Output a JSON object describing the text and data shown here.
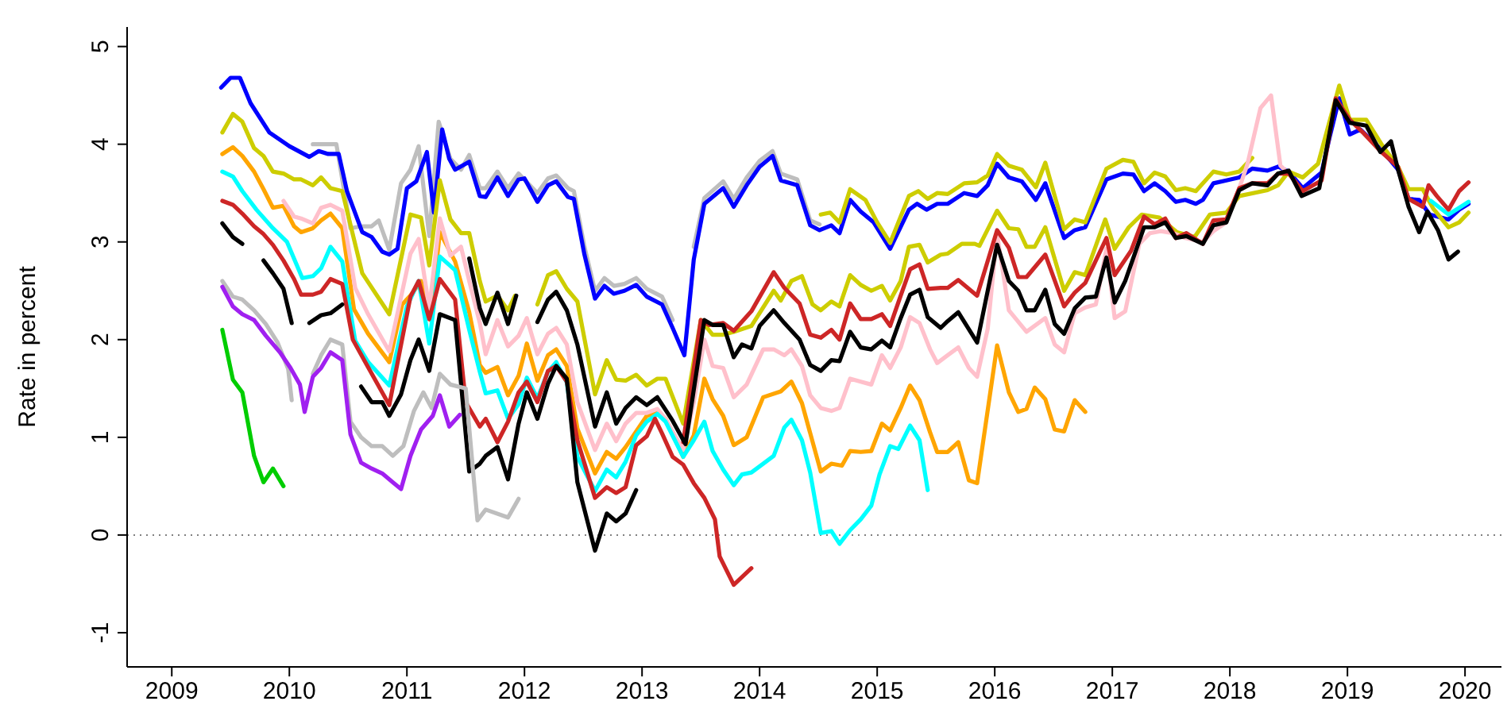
{
  "chart_data": {
    "type": "line",
    "ylabel": "Rate in percent",
    "xlim": [
      2008.62,
      2020.31
    ],
    "ylim": [
      -1.35,
      5.2
    ],
    "xticks": [
      2009,
      2010,
      2011,
      2012,
      2013,
      2014,
      2015,
      2016,
      2017,
      2018,
      2019,
      2020
    ],
    "yticks": [
      -1,
      0,
      1,
      2,
      3,
      4,
      5
    ],
    "grid": false,
    "ref_lines": [
      {
        "axis": "y",
        "value": 0,
        "color": "#808080",
        "line_style": "dotted"
      }
    ],
    "series": [
      {
        "color": "#bebebe",
        "x": [
          2010.2,
          2010.3,
          2010.4,
          2010.52,
          2010.61,
          2010.7,
          2010.76,
          2010.85,
          2010.95,
          2011.03,
          2011.1,
          2011.19,
          2011.27,
          2011.37,
          2011.46,
          2011.53,
          2011.62,
          2011.67,
          2011.77,
          2011.86,
          2011.95,
          2012.11,
          2012.2,
          2012.27,
          2012.37,
          2012.42,
          2012.51,
          2012.6,
          2012.68,
          2012.76,
          2012.85,
          2012.95,
          2013.04,
          2013.17,
          2013.26,
          2013.36,
          2013.44,
          2013.53,
          2013.69,
          2013.78,
          2013.89,
          2014.0,
          2014.11,
          2014.18,
          2014.32,
          2014.43,
          2014.51
        ],
        "values": [
          4.0,
          4.0,
          4.0,
          3.14,
          3.16,
          3.16,
          3.22,
          2.92,
          3.6,
          3.74,
          3.98,
          3.06,
          4.23,
          3.85,
          3.74,
          3.89,
          3.55,
          3.55,
          3.72,
          3.55,
          3.7,
          3.5,
          3.65,
          3.68,
          3.55,
          3.52,
          2.95,
          2.5,
          2.63,
          2.55,
          2.57,
          2.63,
          2.52,
          2.44,
          2.2,
          null,
          2.95,
          3.45,
          3.62,
          3.44,
          3.66,
          3.83,
          3.93,
          3.7,
          3.64,
          3.22,
          3.18
        ]
      },
      {
        "color": "#0000ff",
        "x": [
          2009.42,
          2009.5,
          2009.58,
          2009.67,
          2009.83,
          2010.0,
          2010.17,
          2010.25,
          2010.33,
          2010.42,
          2010.49,
          2010.62,
          2010.7,
          2010.79,
          2010.85,
          2010.92,
          2011.0,
          2011.08,
          2011.17,
          2011.23,
          2011.3,
          2011.36,
          2011.41,
          2011.53,
          2011.62,
          2011.67,
          2011.77,
          2011.86,
          2011.95,
          2012.0,
          2012.11,
          2012.2,
          2012.27,
          2012.37,
          2012.42,
          2012.51,
          2012.6,
          2012.68,
          2012.76,
          2012.85,
          2012.95,
          2013.04,
          2013.17,
          2013.26,
          2013.36,
          2013.44,
          2013.53,
          2013.69,
          2013.78,
          2013.89,
          2014.0,
          2014.11,
          2014.18,
          2014.32,
          2014.43,
          2014.51,
          2014.61,
          2014.68,
          2014.77,
          2014.86,
          2014.97,
          2015.11,
          2015.27,
          2015.34,
          2015.42,
          2015.51,
          2015.6,
          2015.74,
          2015.85,
          2015.94,
          2016.02,
          2016.12,
          2016.23,
          2016.35,
          2016.43,
          2016.59,
          2016.68,
          2016.77,
          2016.95,
          2017.09,
          2017.18,
          2017.27,
          2017.36,
          2017.45,
          2017.54,
          2017.62,
          2017.71,
          2017.77,
          2017.86,
          2017.97,
          2018.08,
          2018.19,
          2018.32,
          2018.41,
          2018.5,
          2018.62,
          2018.78,
          2018.85,
          2018.93,
          2019.02,
          2019.11,
          2019.3,
          2019.43,
          2019.52,
          2019.61,
          2019.7,
          2019.86,
          2019.95,
          2020.03
        ],
        "values": [
          4.58,
          4.68,
          4.68,
          4.42,
          4.12,
          3.98,
          3.87,
          3.93,
          3.9,
          3.9,
          3.52,
          3.1,
          3.05,
          2.9,
          2.87,
          2.93,
          3.55,
          3.62,
          3.92,
          3.3,
          4.15,
          3.85,
          3.74,
          3.82,
          3.47,
          3.46,
          3.66,
          3.47,
          3.64,
          3.65,
          3.41,
          3.58,
          3.62,
          3.46,
          3.44,
          2.87,
          2.42,
          2.55,
          2.47,
          2.5,
          2.56,
          2.44,
          2.36,
          2.12,
          1.84,
          2.82,
          3.39,
          3.55,
          3.36,
          3.58,
          3.77,
          3.88,
          3.63,
          3.58,
          3.17,
          3.12,
          3.17,
          3.09,
          3.43,
          3.31,
          3.2,
          2.93,
          3.33,
          3.39,
          3.33,
          3.39,
          3.39,
          3.5,
          3.47,
          3.58,
          3.8,
          3.66,
          3.62,
          3.43,
          3.6,
          3.04,
          3.12,
          3.15,
          3.64,
          3.7,
          3.69,
          3.52,
          3.6,
          3.52,
          3.41,
          3.43,
          3.39,
          3.43,
          3.6,
          3.63,
          3.66,
          3.75,
          3.73,
          3.77,
          3.72,
          3.55,
          3.71,
          4.08,
          4.47,
          4.1,
          4.15,
          3.93,
          3.74,
          3.44,
          3.43,
          3.28,
          3.23,
          3.33,
          3.39
        ]
      },
      {
        "color": "#cdcd00",
        "x": [
          2009.43,
          2009.52,
          2009.6,
          2009.7,
          2009.78,
          2009.86,
          2009.95,
          2010.04,
          2010.1,
          2010.2,
          2010.27,
          2010.35,
          2010.45,
          2010.62,
          2010.85,
          2011.03,
          2011.12,
          2011.19,
          2011.28,
          2011.37,
          2011.46,
          2011.53,
          2011.62,
          2011.67,
          2011.77,
          2011.86,
          2011.92,
          2012.0,
          2012.11,
          2012.2,
          2012.27,
          2012.36,
          2012.45,
          2012.6,
          2012.7,
          2012.78,
          2012.86,
          2012.95,
          2013.04,
          2013.13,
          2013.2,
          2013.35,
          2013.5,
          2013.6,
          2013.69,
          2013.78,
          2013.93,
          2014.12,
          2014.18,
          2014.27,
          2014.36,
          2014.45,
          2014.52,
          2014.61,
          2014.68,
          2014.77,
          2014.86,
          2014.95,
          2015.04,
          2015.11,
          2015.2,
          2015.27,
          2015.36,
          2015.43,
          2015.54,
          2015.6,
          2015.72,
          2015.83,
          2015.87,
          2016.02,
          2016.12,
          2016.2,
          2016.27,
          2016.34,
          2016.43,
          2016.59,
          2016.68,
          2016.77,
          2016.94,
          2017.02,
          2017.14,
          2017.25,
          2017.4,
          2017.55,
          2017.7,
          2017.83,
          2017.97,
          2018.08,
          2018.32,
          2018.41,
          2018.5,
          2018.62,
          2018.75,
          2018.93,
          2019.02,
          2019.16,
          2019.3,
          2019.43,
          2019.52,
          2019.64,
          2019.73,
          2019.86,
          2019.95,
          2020.03
        ],
        "values": [
          4.12,
          4.31,
          4.23,
          3.96,
          3.88,
          3.72,
          3.7,
          3.64,
          3.64,
          3.58,
          3.66,
          3.55,
          3.52,
          2.68,
          2.26,
          3.28,
          3.25,
          2.76,
          3.63,
          3.23,
          3.09,
          3.09,
          2.6,
          2.39,
          2.45,
          2.3,
          2.45,
          null,
          2.36,
          2.66,
          2.7,
          2.52,
          2.39,
          1.44,
          1.79,
          1.59,
          1.58,
          1.64,
          1.53,
          1.6,
          1.6,
          1.14,
          2.2,
          2.05,
          2.05,
          2.08,
          2.14,
          2.5,
          2.4,
          2.6,
          2.65,
          2.36,
          2.3,
          2.39,
          2.34,
          2.66,
          2.56,
          2.5,
          2.55,
          2.4,
          2.6,
          2.95,
          2.97,
          2.79,
          2.87,
          2.88,
          2.98,
          2.98,
          2.96,
          3.32,
          3.14,
          3.13,
          2.95,
          2.95,
          3.15,
          2.5,
          2.69,
          2.66,
          3.23,
          2.93,
          3.15,
          3.28,
          3.25,
          3.1,
          3.05,
          3.28,
          3.3,
          3.47,
          3.53,
          3.58,
          3.72,
          3.66,
          3.8,
          4.6,
          4.25,
          4.25,
          3.98,
          3.77,
          3.54,
          3.54,
          3.34,
          3.15,
          3.2,
          3.3
        ]
      },
      {
        "color": "#cdcd00",
        "x": [
          2014.52,
          2014.6,
          2014.68,
          2014.77,
          2014.9,
          2015.0,
          2015.11,
          2015.27,
          2015.35,
          2015.43,
          2015.51,
          2015.6,
          2015.74,
          2015.85,
          2015.94,
          2016.02,
          2016.12,
          2016.23,
          2016.35,
          2016.43,
          2016.59,
          2016.68,
          2016.77,
          2016.95,
          2017.09,
          2017.18,
          2017.27,
          2017.36,
          2017.45,
          2017.54,
          2017.62,
          2017.71,
          2017.86,
          2017.97,
          2018.08,
          2018.19
        ],
        "values": [
          3.28,
          3.3,
          3.2,
          3.54,
          3.43,
          3.2,
          2.99,
          3.47,
          3.52,
          3.44,
          3.5,
          3.49,
          3.6,
          3.61,
          3.68,
          3.9,
          3.78,
          3.74,
          3.56,
          3.81,
          3.13,
          3.23,
          3.2,
          3.75,
          3.84,
          3.82,
          3.6,
          3.71,
          3.67,
          3.53,
          3.55,
          3.52,
          3.72,
          3.69,
          3.72,
          3.86
        ]
      },
      {
        "color": "#ffa500",
        "x": [
          2009.43,
          2009.52,
          2009.6,
          2009.7,
          2009.78,
          2009.86,
          2009.95,
          2010.04,
          2010.1,
          2010.2,
          2010.27,
          2010.35,
          2010.45,
          2010.55,
          2010.67,
          2010.85,
          2010.96,
          2011.03,
          2011.12,
          2011.2,
          2011.28,
          2011.41,
          2011.53,
          2011.62,
          2011.67,
          2011.77,
          2011.86,
          2011.95,
          2012.02,
          2012.11,
          2012.2,
          2012.27,
          2012.36,
          2012.45,
          2012.6,
          2012.7,
          2012.78,
          2012.86,
          2012.95,
          2013.04,
          2013.13,
          2013.2,
          2013.35,
          2013.44,
          2013.53,
          2013.6,
          2013.69,
          2013.78,
          2013.89,
          2014.03,
          2014.18,
          2014.27,
          2014.36,
          2014.52,
          2014.61,
          2014.7,
          2014.77,
          2014.86,
          2014.95,
          2015.04,
          2015.11,
          2015.2,
          2015.28,
          2015.36,
          2015.45,
          2015.51,
          2015.6,
          2015.69,
          2015.78,
          2015.85,
          2016.02,
          2016.12,
          2016.2,
          2016.27,
          2016.34,
          2016.43,
          2016.51,
          2016.59,
          2016.68,
          2016.77
        ],
        "values": [
          3.9,
          3.97,
          3.88,
          3.72,
          3.54,
          3.35,
          3.37,
          3.16,
          3.1,
          3.14,
          3.22,
          3.29,
          3.14,
          2.31,
          2.06,
          1.77,
          2.36,
          2.45,
          2.6,
          2.2,
          3.1,
          2.8,
          2.28,
          1.74,
          1.66,
          1.72,
          1.43,
          1.63,
          1.96,
          1.58,
          1.84,
          1.9,
          1.73,
          1.09,
          0.63,
          0.85,
          0.78,
          0.9,
          1.06,
          1.22,
          1.25,
          1.19,
          0.8,
          1.02,
          1.6,
          1.39,
          1.22,
          0.92,
          1.0,
          1.41,
          1.47,
          1.57,
          1.35,
          0.65,
          0.73,
          0.71,
          0.86,
          0.85,
          0.86,
          1.14,
          1.07,
          1.3,
          1.53,
          1.38,
          1.05,
          0.85,
          0.85,
          0.95,
          0.56,
          0.53,
          1.94,
          1.46,
          1.26,
          1.29,
          1.51,
          1.39,
          1.08,
          1.06,
          1.38,
          1.26
        ]
      },
      {
        "color": "#ffc0cb",
        "x": [
          2009.95,
          2010.04,
          2010.1,
          2010.2,
          2010.27,
          2010.35,
          2010.45,
          2010.56,
          2010.67,
          2010.85,
          2011.03,
          2011.1,
          2011.19,
          2011.28,
          2011.37,
          2011.46,
          2011.53,
          2011.62,
          2011.67,
          2011.77,
          2011.86,
          2011.95,
          2012.02,
          2012.11,
          2012.2,
          2012.27,
          2012.36,
          2012.45,
          2012.6,
          2012.7,
          2012.78,
          2012.86,
          2012.95,
          2013.04,
          2013.13,
          2013.2,
          2013.35,
          2013.44,
          2013.53,
          2013.6,
          2013.69,
          2013.78,
          2013.89,
          2014.03,
          2014.12,
          2014.21,
          2014.27,
          2014.36,
          2014.43,
          2014.52,
          2014.61,
          2014.68,
          2014.77,
          2014.86,
          2014.95,
          2015.04,
          2015.11,
          2015.2,
          2015.28,
          2015.36,
          2015.45,
          2015.51,
          2015.6,
          2015.69,
          2015.78,
          2015.85,
          2015.94,
          2016.02,
          2016.12,
          2016.27,
          2016.43,
          2016.51,
          2016.59,
          2016.68,
          2016.77,
          2016.86,
          2016.95,
          2017.02,
          2017.11,
          2017.23,
          2017.32,
          2017.41,
          2017.52,
          2017.62,
          2017.77,
          2017.86,
          2017.97,
          2018.08,
          2018.15,
          2018.26,
          2018.35,
          2018.43,
          2018.5
        ],
        "values": [
          3.42,
          3.26,
          3.24,
          3.19,
          3.35,
          3.38,
          3.32,
          2.53,
          2.26,
          1.88,
          2.88,
          3.03,
          2.32,
          3.24,
          2.86,
          2.95,
          2.6,
          2.17,
          1.85,
          2.2,
          1.93,
          2.04,
          2.22,
          1.85,
          2.06,
          2.12,
          1.95,
          1.36,
          0.87,
          1.14,
          0.96,
          1.14,
          1.25,
          1.25,
          1.29,
          1.19,
          0.87,
          1.36,
          2.0,
          1.73,
          1.71,
          1.41,
          1.54,
          1.9,
          1.9,
          1.84,
          1.9,
          1.73,
          1.43,
          1.3,
          1.27,
          1.3,
          1.6,
          1.57,
          1.54,
          1.84,
          1.71,
          1.92,
          2.23,
          2.17,
          1.9,
          1.76,
          1.84,
          1.92,
          1.71,
          1.62,
          2.11,
          3.08,
          2.3,
          2.08,
          2.22,
          1.95,
          1.87,
          2.27,
          2.33,
          2.36,
          2.93,
          2.22,
          2.29,
          2.98,
          3.09,
          3.11,
          3.09,
          3.04,
          3.0,
          3.11,
          3.2,
          3.55,
          3.8,
          4.37,
          4.5,
          3.78,
          3.7
        ]
      },
      {
        "color": "#00ffff",
        "x": [
          2009.43,
          2009.52,
          2009.6,
          2009.72,
          2009.86,
          2009.98,
          2010.11,
          2010.2,
          2010.27,
          2010.35,
          2010.45,
          2010.56,
          2010.67,
          2010.85,
          2011.0,
          2011.1,
          2011.19,
          2011.28,
          2011.41,
          2011.53,
          2011.62,
          2011.67,
          2011.77,
          2011.86,
          2011.95,
          2012.02,
          2012.11,
          2012.2,
          2012.27,
          2012.36,
          2012.45,
          2012.6,
          2012.7,
          2012.78,
          2012.86,
          2012.95,
          2013.04,
          2013.13,
          2013.2,
          2013.35,
          2013.44,
          2013.53,
          2013.6,
          2013.69,
          2013.78,
          2013.85,
          2013.93,
          2014.03,
          2014.12,
          2014.21,
          2014.27,
          2014.36,
          2014.43,
          2014.52,
          2014.61,
          2014.68,
          2014.77,
          2014.86,
          2014.95,
          2015.02,
          2015.11,
          2015.18,
          2015.28,
          2015.36,
          2015.43,
          2017.0,
          2019.71,
          2019.86,
          2020.03
        ],
        "values": [
          3.72,
          3.67,
          3.52,
          3.33,
          3.14,
          3.0,
          2.63,
          2.65,
          2.73,
          2.95,
          2.8,
          1.99,
          1.77,
          1.53,
          2.34,
          2.6,
          1.96,
          2.85,
          2.71,
          2.1,
          1.67,
          1.45,
          1.48,
          1.19,
          1.34,
          1.61,
          1.4,
          1.67,
          1.77,
          1.56,
          0.8,
          0.45,
          0.67,
          0.59,
          0.75,
          1.02,
          1.16,
          1.24,
          1.16,
          0.8,
          0.97,
          1.16,
          0.86,
          0.67,
          0.51,
          0.62,
          0.64,
          0.73,
          0.81,
          1.1,
          1.18,
          0.97,
          0.64,
          0.02,
          0.04,
          -0.09,
          0.05,
          0.16,
          0.3,
          0.62,
          0.91,
          0.88,
          1.12,
          0.97,
          0.46,
          null,
          3.42,
          3.28,
          3.41
        ]
      },
      {
        "color": "#cd2626",
        "x": [
          2009.43,
          2009.52,
          2009.6,
          2009.7,
          2009.78,
          2009.86,
          2009.95,
          2010.04,
          2010.1,
          2010.2,
          2010.27,
          2010.35,
          2010.45,
          2010.54,
          2010.65,
          2010.85,
          2011.03,
          2011.1,
          2011.19,
          2011.28,
          2011.41,
          2011.5,
          2011.62,
          2011.67,
          2011.77,
          2011.86,
          2011.95,
          2012.02,
          2012.11,
          2012.2,
          2012.27,
          2012.36,
          2012.45,
          2012.6,
          2012.7,
          2012.78,
          2012.86,
          2012.95,
          2013.04,
          2013.11,
          2013.17,
          2013.26,
          2013.35,
          2013.44,
          2013.53,
          2013.62,
          2013.66,
          2013.78,
          2013.93
        ],
        "values": [
          3.42,
          3.38,
          3.29,
          3.16,
          3.08,
          2.97,
          2.81,
          2.62,
          2.46,
          2.46,
          2.49,
          2.62,
          2.57,
          2.0,
          1.76,
          1.33,
          2.44,
          2.6,
          2.21,
          2.62,
          2.41,
          1.36,
          1.11,
          1.19,
          0.95,
          1.16,
          1.46,
          1.57,
          1.36,
          1.68,
          1.73,
          1.57,
          0.97,
          0.38,
          0.49,
          0.43,
          0.49,
          0.92,
          1.01,
          1.19,
          1.04,
          0.8,
          0.72,
          0.53,
          0.38,
          0.16,
          -0.22,
          -0.51,
          -0.34
        ]
      },
      {
        "color": "#cd2626",
        "x": [
          2013.35,
          2013.5,
          2013.57,
          2013.69,
          2013.78,
          2013.93,
          2014.12,
          2014.21,
          2014.34,
          2014.43,
          2014.52,
          2014.61,
          2014.68,
          2014.77,
          2014.86,
          2014.95,
          2015.04,
          2015.11,
          2015.2,
          2015.28,
          2015.36,
          2015.43,
          2015.54,
          2015.6,
          2015.69,
          2015.85,
          2016.02,
          2016.12,
          2016.2,
          2016.27,
          2016.43,
          2016.59,
          2016.68,
          2016.77,
          2016.95,
          2017.02,
          2017.16,
          2017.27,
          2017.36,
          2017.45,
          2017.54,
          2017.63,
          2017.77,
          2017.86,
          2017.97,
          2018.08,
          2018.19,
          2018.32,
          2018.41,
          2018.5,
          2018.62,
          2018.78,
          2018.9,
          2019.02,
          2019.14,
          2019.28,
          2019.43,
          2019.52,
          2019.64,
          2019.69,
          2019.76,
          2019.86,
          2019.95,
          2020.03
        ],
        "values": [
          0.95,
          2.2,
          2.15,
          2.17,
          2.09,
          2.29,
          2.69,
          2.53,
          2.37,
          2.05,
          2.02,
          2.1,
          2.0,
          2.37,
          2.21,
          2.21,
          2.26,
          2.14,
          2.45,
          2.72,
          2.77,
          2.52,
          2.53,
          2.53,
          2.61,
          2.45,
          3.12,
          2.94,
          2.64,
          2.64,
          2.87,
          2.34,
          2.48,
          2.58,
          3.04,
          2.66,
          2.91,
          3.26,
          3.18,
          3.24,
          3.04,
          3.09,
          2.98,
          3.22,
          3.23,
          3.55,
          3.6,
          3.6,
          3.7,
          3.7,
          3.52,
          3.63,
          4.47,
          4.25,
          4.11,
          3.93,
          3.77,
          3.44,
          3.36,
          3.58,
          3.47,
          3.33,
          3.52,
          3.61
        ]
      },
      {
        "color": "#000000",
        "x": [
          2009.43,
          2009.52,
          2009.6,
          2009.69,
          2009.78,
          2009.86,
          2009.95,
          2010.02,
          2010.1,
          2010.17,
          2010.27,
          2010.35,
          2010.45,
          2010.53,
          2010.61,
          2010.7,
          2010.79,
          2010.85,
          2010.95,
          2011.03,
          2011.1,
          2011.19,
          2011.28,
          2011.41,
          2011.53,
          2011.62,
          2011.67,
          2011.77,
          2011.86,
          2011.95,
          2012.02,
          2012.11,
          2012.2,
          2012.27,
          2012.36,
          2012.45,
          2012.6,
          2012.7,
          2012.78,
          2012.86,
          2012.95
        ],
        "values": [
          3.19,
          3.05,
          2.98,
          null,
          2.81,
          2.68,
          2.52,
          2.17,
          null,
          2.17,
          2.25,
          2.27,
          2.36,
          null,
          1.52,
          1.36,
          1.36,
          1.22,
          1.44,
          1.79,
          2.0,
          1.68,
          2.26,
          2.2,
          0.65,
          0.73,
          0.81,
          0.9,
          0.57,
          1.14,
          1.46,
          1.19,
          1.55,
          1.73,
          1.6,
          0.54,
          -0.16,
          0.22,
          0.14,
          0.22,
          0.46
        ]
      },
      {
        "color": "#000000",
        "x": [
          2011.53,
          2011.62,
          2011.67,
          2011.77,
          2011.86,
          2011.93,
          2012.02,
          2012.11,
          2012.2,
          2012.27,
          2012.36,
          2012.45,
          2012.6,
          2012.7,
          2012.78,
          2012.86,
          2012.95,
          2013.04,
          2013.13,
          2013.26,
          2013.37,
          2013.53,
          2013.6,
          2013.69,
          2013.78,
          2013.85,
          2013.93,
          2014.0,
          2014.12,
          2014.21,
          2014.34,
          2014.43,
          2014.52,
          2014.61,
          2014.68,
          2014.77,
          2014.86,
          2014.95,
          2015.04,
          2015.11,
          2015.2,
          2015.28,
          2015.36,
          2015.43,
          2015.54,
          2015.6,
          2015.69,
          2015.85,
          2016.02,
          2016.12,
          2016.2,
          2016.27,
          2016.34,
          2016.43,
          2016.51,
          2016.59,
          2016.68,
          2016.77,
          2016.86,
          2016.95,
          2017.02,
          2017.11,
          2017.27,
          2017.36,
          2017.45,
          2017.54,
          2017.63,
          2017.77,
          2017.86,
          2017.97,
          2018.08,
          2018.19,
          2018.32,
          2018.41,
          2018.5,
          2018.61,
          2018.76,
          2018.9,
          2019.02,
          2019.16,
          2019.28,
          2019.37,
          2019.43,
          2019.52,
          2019.61,
          2019.68,
          2019.77,
          2019.86,
          2019.94
        ],
        "values": [
          2.83,
          2.32,
          2.16,
          2.48,
          2.16,
          2.45,
          null,
          2.18,
          2.41,
          2.49,
          2.3,
          1.95,
          1.11,
          1.46,
          1.14,
          1.3,
          1.41,
          1.33,
          1.41,
          1.17,
          0.93,
          2.2,
          2.15,
          2.15,
          1.82,
          1.95,
          1.91,
          2.14,
          2.3,
          2.17,
          2.0,
          1.74,
          1.68,
          1.79,
          1.78,
          2.08,
          1.92,
          1.9,
          1.99,
          1.92,
          2.22,
          2.46,
          2.51,
          2.23,
          2.12,
          2.19,
          2.28,
          1.97,
          2.97,
          2.6,
          2.5,
          2.3,
          2.3,
          2.51,
          2.16,
          2.06,
          2.32,
          2.43,
          2.44,
          2.84,
          2.38,
          2.6,
          3.15,
          3.15,
          3.2,
          3.04,
          3.06,
          2.98,
          3.17,
          3.2,
          3.53,
          3.6,
          3.58,
          3.7,
          3.73,
          3.47,
          3.55,
          4.45,
          4.22,
          4.19,
          3.92,
          4.03,
          3.74,
          3.36,
          3.1,
          3.31,
          3.12,
          2.82,
          2.9
        ]
      },
      {
        "color": "#bebebe",
        "x": [
          2009.43,
          2009.52,
          2009.6,
          2009.7,
          2009.8,
          2009.9,
          2009.99,
          2010.02,
          2010.1,
          2010.2,
          2010.27,
          2010.35,
          2010.45,
          2010.52,
          2010.61,
          2010.7,
          2010.79,
          2010.88,
          2010.97,
          2011.06,
          2011.14,
          2011.21,
          2011.28,
          2011.37,
          2011.5,
          2011.6,
          2011.67,
          2011.86,
          2011.95
        ],
        "values": [
          2.6,
          2.44,
          2.41,
          2.3,
          2.16,
          1.97,
          1.7,
          1.38,
          null,
          1.65,
          1.84,
          2.0,
          1.95,
          1.16,
          1.0,
          0.91,
          0.91,
          0.81,
          0.91,
          1.27,
          1.46,
          1.3,
          1.65,
          1.54,
          1.5,
          0.15,
          0.26,
          0.18,
          0.37
        ]
      },
      {
        "color": "#a020f0",
        "x": [
          2009.43,
          2009.52,
          2009.6,
          2009.7,
          2009.8,
          2009.92,
          2010.01,
          2010.09,
          2010.13,
          2010.2,
          2010.27,
          2010.35,
          2010.45,
          2010.52,
          2010.61,
          2010.7,
          2010.79,
          2010.88,
          2010.95,
          2011.03,
          2011.12,
          2011.22,
          2011.28,
          2011.36,
          2011.45
        ],
        "values": [
          2.54,
          2.34,
          2.26,
          2.2,
          2.04,
          1.87,
          1.71,
          1.54,
          1.26,
          1.62,
          1.71,
          1.87,
          1.79,
          1.03,
          0.74,
          0.68,
          0.63,
          0.54,
          0.47,
          0.81,
          1.08,
          1.22,
          1.43,
          1.11,
          1.23
        ]
      },
      {
        "color": "#00cd00",
        "x": [
          2009.43,
          2009.52,
          2009.6,
          2009.7,
          2009.78,
          2009.86,
          2009.95
        ],
        "values": [
          2.1,
          1.59,
          1.46,
          0.81,
          0.54,
          0.68,
          0.5
        ]
      }
    ]
  }
}
